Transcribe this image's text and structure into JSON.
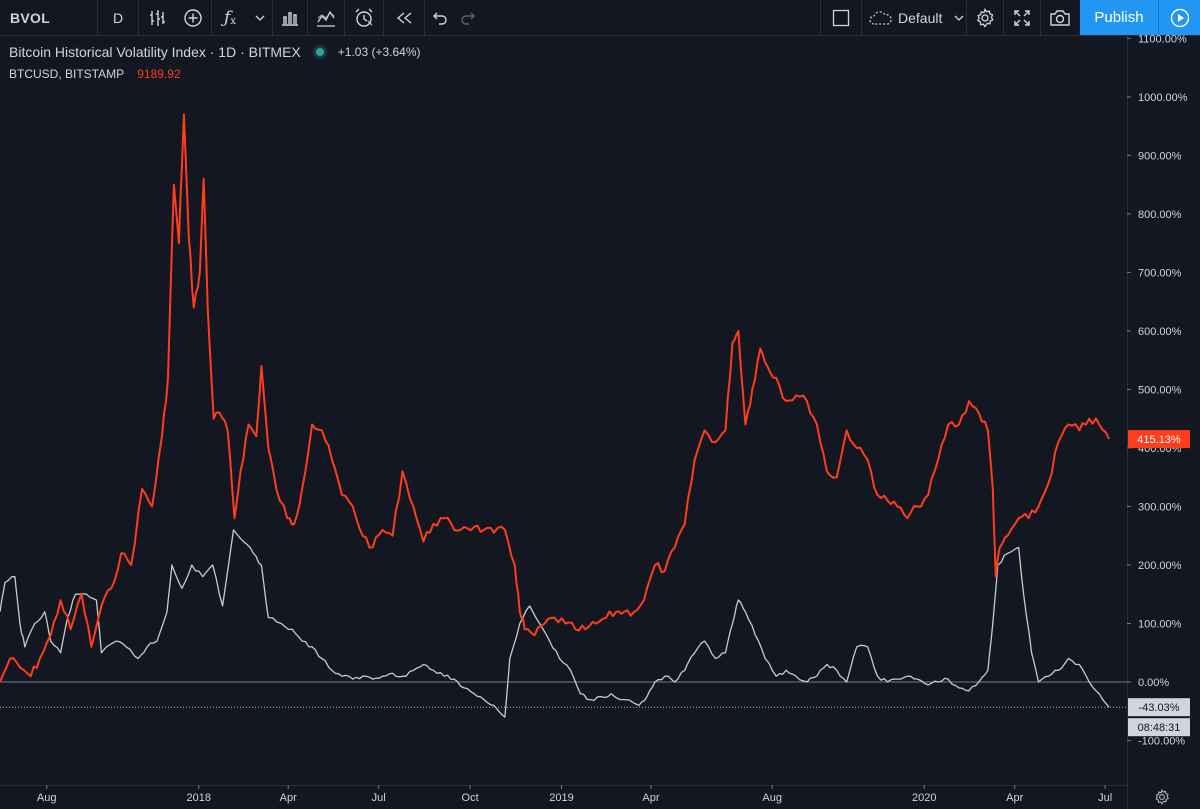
{
  "toolbar": {
    "symbol": "BVOL",
    "interval": "D",
    "chart_style_icon": "bar-style-icon",
    "compare_icon": "plus-circle-icon",
    "indicators_icon": "fx-icon",
    "template_icon": "templates-icon",
    "alert_icon": "alarm-clock-icon",
    "replay_icon": "rewind-icon",
    "layout_name": "Default",
    "publish_label": "Publish"
  },
  "legend": {
    "main_title": "Bitcoin Historical Volatility Index · 1D · BITMEX",
    "main_change": "+1.03 (+3.64%)",
    "compare_symbol": "BTCUSD, BITSTAMP",
    "compare_value": "9189.92"
  },
  "price_scale": {
    "last_value_label": "415.13%",
    "compare_value_label": "-43.03%",
    "countdown": "08:48:31"
  },
  "colors": {
    "background": "#131722",
    "btcusd_line": "#ff3d1a",
    "bvol_line": "#c8cad0",
    "grid": "#2a2e39",
    "accent": "#2196f3"
  },
  "chart_data": {
    "type": "line",
    "y_unit": "%",
    "ylim": [
      -176,
      1104
    ],
    "y_ticks": [
      -100,
      0,
      100,
      200,
      300,
      400,
      500,
      600,
      700,
      800,
      900,
      1000,
      1100
    ],
    "y_tick_labels": [
      "-100.00%",
      "0.00%",
      "100.00%",
      "200.00%",
      "300.00%",
      "400.00%",
      "500.00%",
      "600.00%",
      "700.00%",
      "800.00%",
      "900.00%",
      "1000.00%",
      "1100.00%"
    ],
    "xlim": [
      "2017-06-15",
      "2020-07-23"
    ],
    "x_ticks": [
      "2017-08-01",
      "2018-01-01",
      "2018-04-01",
      "2018-07-01",
      "2018-10-01",
      "2019-01-01",
      "2019-04-01",
      "2019-08-01",
      "2020-01-01",
      "2020-04-01",
      "2020-07-01"
    ],
    "x_tick_labels": [
      "Aug",
      "2018",
      "Apr",
      "Jul",
      "Oct",
      "2019",
      "Apr",
      "Aug",
      "2020",
      "Apr",
      "Jul"
    ],
    "grid": false,
    "zero_line": 0,
    "series": [
      {
        "name": "BTCUSD, BITSTAMP",
        "color": "#ff3d1a",
        "points": [
          [
            "2017-06-15",
            0
          ],
          [
            "2017-06-25",
            40
          ],
          [
            "2017-07-05",
            25
          ],
          [
            "2017-07-16",
            10
          ],
          [
            "2017-07-25",
            40
          ],
          [
            "2017-08-05",
            80
          ],
          [
            "2017-08-15",
            140
          ],
          [
            "2017-08-25",
            90
          ],
          [
            "2017-09-05",
            150
          ],
          [
            "2017-09-15",
            60
          ],
          [
            "2017-09-25",
            130
          ],
          [
            "2017-10-05",
            160
          ],
          [
            "2017-10-15",
            220
          ],
          [
            "2017-10-25",
            200
          ],
          [
            "2017-11-05",
            330
          ],
          [
            "2017-11-15",
            300
          ],
          [
            "2017-11-25",
            420
          ],
          [
            "2017-12-01",
            520
          ],
          [
            "2017-12-07",
            850
          ],
          [
            "2017-12-12",
            750
          ],
          [
            "2017-12-17",
            970
          ],
          [
            "2017-12-22",
            760
          ],
          [
            "2017-12-27",
            640
          ],
          [
            "2018-01-02",
            700
          ],
          [
            "2018-01-06",
            860
          ],
          [
            "2018-01-10",
            640
          ],
          [
            "2018-01-16",
            450
          ],
          [
            "2018-01-22",
            460
          ],
          [
            "2018-01-30",
            430
          ],
          [
            "2018-02-06",
            280
          ],
          [
            "2018-02-12",
            360
          ],
          [
            "2018-02-20",
            440
          ],
          [
            "2018-02-28",
            420
          ],
          [
            "2018-03-05",
            540
          ],
          [
            "2018-03-12",
            400
          ],
          [
            "2018-03-20",
            330
          ],
          [
            "2018-03-31",
            280
          ],
          [
            "2018-04-07",
            270
          ],
          [
            "2018-04-15",
            330
          ],
          [
            "2018-04-25",
            440
          ],
          [
            "2018-05-05",
            430
          ],
          [
            "2018-05-15",
            380
          ],
          [
            "2018-05-25",
            320
          ],
          [
            "2018-06-05",
            300
          ],
          [
            "2018-06-15",
            250
          ],
          [
            "2018-06-25",
            230
          ],
          [
            "2018-07-05",
            260
          ],
          [
            "2018-07-15",
            250
          ],
          [
            "2018-07-25",
            360
          ],
          [
            "2018-08-05",
            300
          ],
          [
            "2018-08-15",
            240
          ],
          [
            "2018-08-25",
            270
          ],
          [
            "2018-09-05",
            280
          ],
          [
            "2018-09-15",
            260
          ],
          [
            "2018-09-25",
            265
          ],
          [
            "2018-10-05",
            265
          ],
          [
            "2018-10-15",
            260
          ],
          [
            "2018-10-25",
            255
          ],
          [
            "2018-11-05",
            260
          ],
          [
            "2018-11-15",
            200
          ],
          [
            "2018-11-20",
            120
          ],
          [
            "2018-11-25",
            90
          ],
          [
            "2018-12-05",
            80
          ],
          [
            "2018-12-15",
            100
          ],
          [
            "2018-12-25",
            110
          ],
          [
            "2019-01-05",
            100
          ],
          [
            "2019-01-15",
            90
          ],
          [
            "2019-01-25",
            90
          ],
          [
            "2019-02-05",
            100
          ],
          [
            "2019-02-15",
            110
          ],
          [
            "2019-02-25",
            120
          ],
          [
            "2019-03-05",
            120
          ],
          [
            "2019-03-15",
            120
          ],
          [
            "2019-03-25",
            140
          ],
          [
            "2019-04-05",
            200
          ],
          [
            "2019-04-15",
            190
          ],
          [
            "2019-04-25",
            230
          ],
          [
            "2019-05-05",
            270
          ],
          [
            "2019-05-15",
            380
          ],
          [
            "2019-05-25",
            430
          ],
          [
            "2019-06-05",
            410
          ],
          [
            "2019-06-15",
            430
          ],
          [
            "2019-06-22",
            580
          ],
          [
            "2019-06-28",
            600
          ],
          [
            "2019-07-05",
            440
          ],
          [
            "2019-07-12",
            500
          ],
          [
            "2019-07-20",
            570
          ],
          [
            "2019-07-27",
            540
          ],
          [
            "2019-08-05",
            520
          ],
          [
            "2019-08-15",
            480
          ],
          [
            "2019-08-25",
            490
          ],
          [
            "2019-09-05",
            480
          ],
          [
            "2019-09-15",
            440
          ],
          [
            "2019-09-25",
            360
          ],
          [
            "2019-10-05",
            350
          ],
          [
            "2019-10-15",
            430
          ],
          [
            "2019-10-25",
            400
          ],
          [
            "2019-11-05",
            380
          ],
          [
            "2019-11-15",
            320
          ],
          [
            "2019-11-25",
            310
          ],
          [
            "2019-12-05",
            300
          ],
          [
            "2019-12-15",
            280
          ],
          [
            "2019-12-25",
            300
          ],
          [
            "2020-01-05",
            320
          ],
          [
            "2020-01-15",
            380
          ],
          [
            "2020-01-25",
            440
          ],
          [
            "2020-02-05",
            440
          ],
          [
            "2020-02-15",
            480
          ],
          [
            "2020-02-25",
            460
          ],
          [
            "2020-03-05",
            430
          ],
          [
            "2020-03-10",
            330
          ],
          [
            "2020-03-13",
            180
          ],
          [
            "2020-03-17",
            230
          ],
          [
            "2020-03-25",
            250
          ],
          [
            "2020-04-05",
            280
          ],
          [
            "2020-04-15",
            280
          ],
          [
            "2020-04-25",
            300
          ],
          [
            "2020-05-05",
            340
          ],
          [
            "2020-05-15",
            410
          ],
          [
            "2020-05-25",
            440
          ],
          [
            "2020-06-05",
            430
          ],
          [
            "2020-06-15",
            450
          ],
          [
            "2020-06-25",
            440
          ],
          [
            "2020-07-05",
            415.13
          ]
        ]
      },
      {
        "name": "Bitcoin Historical Volatility Index",
        "color": "#c8cad0",
        "points": [
          [
            "2017-06-15",
            120
          ],
          [
            "2017-06-20",
            170
          ],
          [
            "2017-06-30",
            180
          ],
          [
            "2017-07-05",
            100
          ],
          [
            "2017-07-10",
            60
          ],
          [
            "2017-07-20",
            100
          ],
          [
            "2017-07-30",
            120
          ],
          [
            "2017-08-05",
            70
          ],
          [
            "2017-08-15",
            50
          ],
          [
            "2017-08-22",
            110
          ],
          [
            "2017-08-30",
            150
          ],
          [
            "2017-09-10",
            150
          ],
          [
            "2017-09-20",
            140
          ],
          [
            "2017-09-25",
            50
          ],
          [
            "2017-10-10",
            70
          ],
          [
            "2017-10-20",
            60
          ],
          [
            "2017-11-01",
            40
          ],
          [
            "2017-11-10",
            60
          ],
          [
            "2017-11-20",
            70
          ],
          [
            "2017-11-30",
            120
          ],
          [
            "2017-12-05",
            200
          ],
          [
            "2017-12-15",
            160
          ],
          [
            "2017-12-25",
            200
          ],
          [
            "2018-01-05",
            180
          ],
          [
            "2018-01-15",
            200
          ],
          [
            "2018-01-25",
            130
          ],
          [
            "2018-02-05",
            260
          ],
          [
            "2018-02-15",
            240
          ],
          [
            "2018-02-25",
            220
          ],
          [
            "2018-03-05",
            200
          ],
          [
            "2018-03-12",
            110
          ],
          [
            "2018-03-25",
            100
          ],
          [
            "2018-04-05",
            90
          ],
          [
            "2018-04-15",
            70
          ],
          [
            "2018-04-25",
            60
          ],
          [
            "2018-05-05",
            40
          ],
          [
            "2018-05-15",
            20
          ],
          [
            "2018-05-25",
            10
          ],
          [
            "2018-06-05",
            5
          ],
          [
            "2018-06-15",
            10
          ],
          [
            "2018-06-25",
            5
          ],
          [
            "2018-07-05",
            10
          ],
          [
            "2018-07-15",
            15
          ],
          [
            "2018-07-25",
            10
          ],
          [
            "2018-08-05",
            20
          ],
          [
            "2018-08-15",
            30
          ],
          [
            "2018-08-25",
            20
          ],
          [
            "2018-09-05",
            10
          ],
          [
            "2018-09-15",
            5
          ],
          [
            "2018-09-25",
            -10
          ],
          [
            "2018-10-05",
            -20
          ],
          [
            "2018-10-15",
            -30
          ],
          [
            "2018-10-25",
            -40
          ],
          [
            "2018-11-05",
            -60
          ],
          [
            "2018-11-10",
            40
          ],
          [
            "2018-11-20",
            100
          ],
          [
            "2018-11-30",
            130
          ],
          [
            "2018-12-10",
            100
          ],
          [
            "2018-12-20",
            70
          ],
          [
            "2018-12-30",
            40
          ],
          [
            "2019-01-10",
            20
          ],
          [
            "2019-01-20",
            -20
          ],
          [
            "2019-01-30",
            -30
          ],
          [
            "2019-02-10",
            -25
          ],
          [
            "2019-02-20",
            -20
          ],
          [
            "2019-03-05",
            -30
          ],
          [
            "2019-03-20",
            -40
          ],
          [
            "2019-03-28",
            -25
          ],
          [
            "2019-04-05",
            0
          ],
          [
            "2019-04-15",
            10
          ],
          [
            "2019-04-25",
            0
          ],
          [
            "2019-05-05",
            20
          ],
          [
            "2019-05-15",
            50
          ],
          [
            "2019-05-25",
            70
          ],
          [
            "2019-06-05",
            40
          ],
          [
            "2019-06-15",
            50
          ],
          [
            "2019-06-22",
            100
          ],
          [
            "2019-06-28",
            140
          ],
          [
            "2019-07-05",
            120
          ],
          [
            "2019-07-15",
            80
          ],
          [
            "2019-07-25",
            40
          ],
          [
            "2019-08-05",
            10
          ],
          [
            "2019-08-15",
            20
          ],
          [
            "2019-08-25",
            10
          ],
          [
            "2019-09-05",
            0
          ],
          [
            "2019-09-15",
            10
          ],
          [
            "2019-09-25",
            30
          ],
          [
            "2019-10-05",
            20
          ],
          [
            "2019-10-15",
            0
          ],
          [
            "2019-10-25",
            60
          ],
          [
            "2019-11-05",
            60
          ],
          [
            "2019-11-15",
            10
          ],
          [
            "2019-11-25",
            0
          ],
          [
            "2019-12-05",
            5
          ],
          [
            "2019-12-15",
            10
          ],
          [
            "2019-12-25",
            5
          ],
          [
            "2020-01-05",
            -5
          ],
          [
            "2020-01-15",
            0
          ],
          [
            "2020-01-25",
            5
          ],
          [
            "2020-02-05",
            -10
          ],
          [
            "2020-02-15",
            -15
          ],
          [
            "2020-02-25",
            0
          ],
          [
            "2020-03-05",
            20
          ],
          [
            "2020-03-10",
            100
          ],
          [
            "2020-03-15",
            200
          ],
          [
            "2020-03-25",
            220
          ],
          [
            "2020-04-05",
            230
          ],
          [
            "2020-04-10",
            150
          ],
          [
            "2020-04-18",
            50
          ],
          [
            "2020-04-25",
            0
          ],
          [
            "2020-05-05",
            10
          ],
          [
            "2020-05-15",
            20
          ],
          [
            "2020-05-25",
            40
          ],
          [
            "2020-06-05",
            30
          ],
          [
            "2020-06-15",
            0
          ],
          [
            "2020-06-25",
            -20
          ],
          [
            "2020-07-05",
            -43.03
          ]
        ]
      }
    ]
  }
}
